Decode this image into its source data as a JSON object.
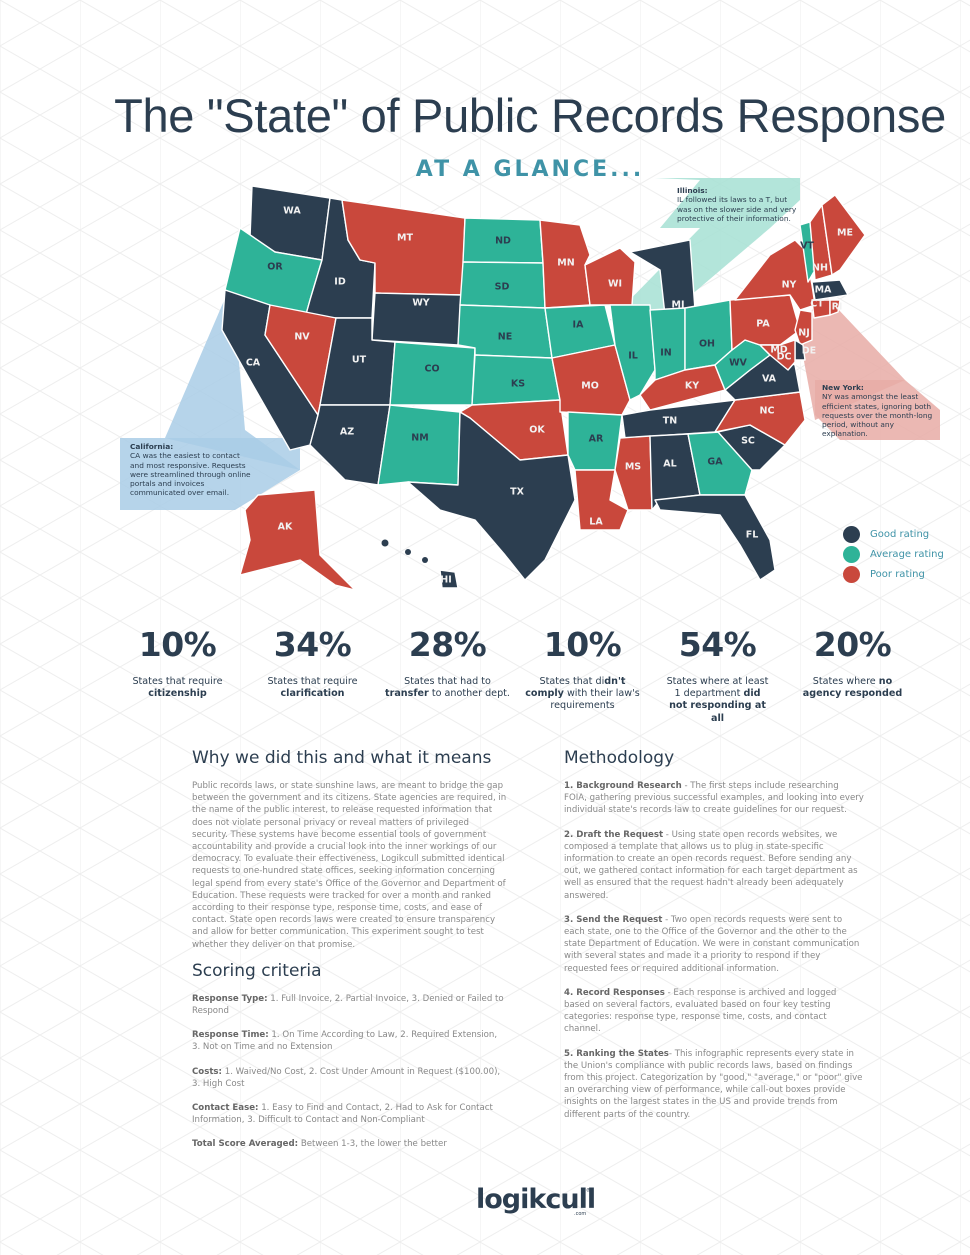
{
  "header": {
    "title": "The \"State\" of Public Records Response",
    "subtitle": "AT A GLANCE..."
  },
  "colors": {
    "good": "#2c3e50",
    "average": "#2eb398",
    "poor": "#c9483c",
    "accent": "#3f93a7",
    "callout_california": "#a9cde6",
    "callout_illinois": "#a6e0d3",
    "callout_newyork": "#e8aba6"
  },
  "legend": [
    {
      "rating": "good",
      "label": "Good rating"
    },
    {
      "rating": "average",
      "label": "Average rating"
    },
    {
      "rating": "poor",
      "label": "Poor rating"
    }
  ],
  "callouts": {
    "illinois": {
      "title": "Illinois:",
      "text": "IL followed its laws to a T, but was on the slower side and very protective of their information."
    },
    "newyork": {
      "title": "New York:",
      "text": "NY was amongst the least efficient states, ignoring both requests over the month-long period, without any explanation."
    },
    "california": {
      "title": "California:",
      "text": "CA was the easiest to contact and most responsive. Requests were streamlined through online portals and invoices communicated over email."
    }
  },
  "states": [
    {
      "abbr": "WA",
      "rating": "good"
    },
    {
      "abbr": "OR",
      "rating": "average"
    },
    {
      "abbr": "CA",
      "rating": "good"
    },
    {
      "abbr": "ID",
      "rating": "good"
    },
    {
      "abbr": "NV",
      "rating": "poor"
    },
    {
      "abbr": "MT",
      "rating": "poor"
    },
    {
      "abbr": "WY",
      "rating": "good"
    },
    {
      "abbr": "UT",
      "rating": "good"
    },
    {
      "abbr": "AZ",
      "rating": "good"
    },
    {
      "abbr": "CO",
      "rating": "average"
    },
    {
      "abbr": "NM",
      "rating": "average"
    },
    {
      "abbr": "ND",
      "rating": "average"
    },
    {
      "abbr": "SD",
      "rating": "average"
    },
    {
      "abbr": "NE",
      "rating": "average"
    },
    {
      "abbr": "KS",
      "rating": "average"
    },
    {
      "abbr": "OK",
      "rating": "poor"
    },
    {
      "abbr": "TX",
      "rating": "good"
    },
    {
      "abbr": "MN",
      "rating": "poor"
    },
    {
      "abbr": "IA",
      "rating": "average"
    },
    {
      "abbr": "MO",
      "rating": "poor"
    },
    {
      "abbr": "AR",
      "rating": "average"
    },
    {
      "abbr": "LA",
      "rating": "poor"
    },
    {
      "abbr": "WI",
      "rating": "poor"
    },
    {
      "abbr": "IL",
      "rating": "average"
    },
    {
      "abbr": "MI",
      "rating": "good"
    },
    {
      "abbr": "IN",
      "rating": "average"
    },
    {
      "abbr": "OH",
      "rating": "average"
    },
    {
      "abbr": "KY",
      "rating": "poor"
    },
    {
      "abbr": "TN",
      "rating": "good"
    },
    {
      "abbr": "MS",
      "rating": "poor"
    },
    {
      "abbr": "AL",
      "rating": "good"
    },
    {
      "abbr": "GA",
      "rating": "average"
    },
    {
      "abbr": "FL",
      "rating": "good"
    },
    {
      "abbr": "SC",
      "rating": "good"
    },
    {
      "abbr": "NC",
      "rating": "poor"
    },
    {
      "abbr": "VA",
      "rating": "good"
    },
    {
      "abbr": "WV",
      "rating": "average"
    },
    {
      "abbr": "PA",
      "rating": "poor"
    },
    {
      "abbr": "NY",
      "rating": "poor"
    },
    {
      "abbr": "VT",
      "rating": "average"
    },
    {
      "abbr": "NH",
      "rating": "poor"
    },
    {
      "abbr": "ME",
      "rating": "poor"
    },
    {
      "abbr": "MA",
      "rating": "good"
    },
    {
      "abbr": "CT",
      "rating": "poor"
    },
    {
      "abbr": "RI",
      "rating": "poor"
    },
    {
      "abbr": "NJ",
      "rating": "poor"
    },
    {
      "abbr": "DE",
      "rating": "good"
    },
    {
      "abbr": "MD",
      "rating": "poor"
    },
    {
      "abbr": "DC",
      "rating": "poor"
    },
    {
      "abbr": "AK",
      "rating": "poor"
    },
    {
      "abbr": "HI",
      "rating": "good"
    }
  ],
  "stats": [
    {
      "value": "10%",
      "pre": "States that require",
      "bold": "citizenship",
      "post": ""
    },
    {
      "value": "34%",
      "pre": "States that require",
      "bold": "clarification",
      "post": ""
    },
    {
      "value": "28%",
      "pre": "States that had to",
      "bold": "transfer",
      "post": "to another dept."
    },
    {
      "value": "10%",
      "pre": "States that di",
      "bold": "dn't comply",
      "post": "with their law's requirements"
    },
    {
      "value": "54%",
      "pre": "States where at least 1 department",
      "bold": "did not responding at all",
      "post": ""
    },
    {
      "value": "20%",
      "pre": "States where",
      "bold": "no agency responded",
      "post": ""
    }
  ],
  "why": {
    "heading": "Why we did this and what it means",
    "body": "Public records laws, or state sunshine laws, are meant to bridge the gap between the government and its citizens. State agencies are required, in the name of the public interest, to release requested information that does not violate personal privacy or reveal matters of privileged security. These systems have become essential tools of government accountability and provide a crucial look into the inner workings of our democracy. To evaluate their effectiveness, Logikcull submitted identical requests to one-hundred state offices, seeking information concerning legal spend from every state's Office of the Governor and Department of Education. These requests were tracked for over a month and ranked according to their response type, response time, costs, and ease of contact. State open records laws were created to ensure transparency and allow for better communication. This experiment sought to test whether they deliver on that promise."
  },
  "scoring": {
    "heading": "Scoring criteria",
    "items": [
      {
        "label": "Response Type:",
        "text": " 1. Full Invoice, 2. Partial Invoice, 3. Denied or Failed to Respond"
      },
      {
        "label": "Response Time:",
        "text": " 1. On Time According to Law, 2. Required Extension, 3. Not on Time and no Extension"
      },
      {
        "label": "Costs:",
        "text": " 1. Waived/No Cost, 2. Cost Under Amount in Request ($100.00), 3. High Cost"
      },
      {
        "label": "Contact Ease:",
        "text": " 1. Easy to Find and Contact, 2. Had to Ask for Contact Information, 3. Difficult to Contact and Non-Compliant"
      },
      {
        "label": "Total Score Averaged:",
        "text": " Between 1-3, the lower the better"
      }
    ]
  },
  "methodology": {
    "heading": "Methodology",
    "items": [
      {
        "label": "1. Background Research",
        "text": " - The first steps include researching FOIA, gathering previous successful examples, and looking into every individual state's records law to create guidelines for our request."
      },
      {
        "label": "2. Draft the Request",
        "text": " - Using state open records websites, we composed a template that allows us to plug in state-specific information to create an open records request. Before sending any out, we gathered contact information for each target department as well as ensured that the request hadn't already been adequately answered."
      },
      {
        "label": "3. Send the Request",
        "text": " - Two open records requests were sent to each state, one to the Office of the Governor and the other to the state Department of Education. We were in constant communication with several states and made it a priority to respond if they requested fees or required additional information."
      },
      {
        "label": "4. Record Responses",
        "text": " - Each response is archived and logged based on several factors, evaluated based on four key testing categories: response type, response time, costs, and contact channel."
      },
      {
        "label": "5. Ranking the States",
        "text": "- This infographic represents every state in the Union's compliance with public records laws, based on findings from this project. Categorization by \"good,\" \"average,\" or \"poor\" give an overarching view of performance, while call-out boxes provide insights on the largest states in the US and provide trends from different parts of the country."
      }
    ]
  },
  "footer": {
    "logo": "logikcull",
    "logo_suffix": ".com",
    "logo_mark": "®"
  }
}
